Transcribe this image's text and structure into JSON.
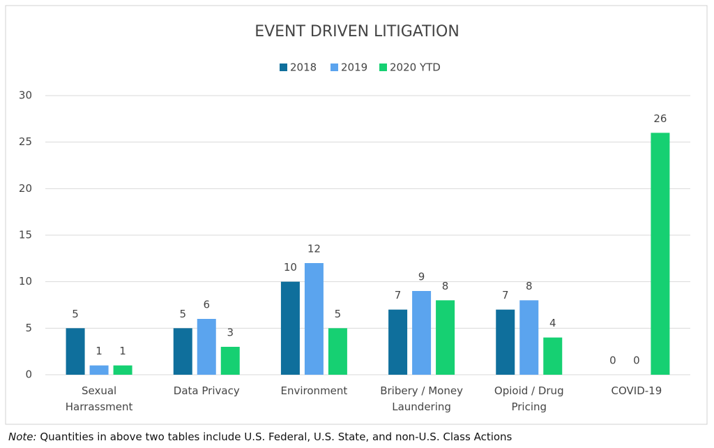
{
  "chart_data": {
    "type": "bar",
    "title": "EVENT DRIVEN LITIGATION",
    "categories": [
      "Sexual Harrassment",
      "Data Privacy",
      "Environment",
      "Bribery / Money Laundering",
      "Opioid / Drug Pricing",
      "COVID-19"
    ],
    "series": [
      {
        "name": "2018",
        "color": "#0f6f9c",
        "values": [
          5,
          5,
          10,
          7,
          7,
          0
        ]
      },
      {
        "name": "2019",
        "color": "#5ba4ee",
        "values": [
          1,
          6,
          12,
          9,
          8,
          0
        ]
      },
      {
        "name": "2020 YTD",
        "color": "#16d072",
        "values": [
          1,
          3,
          5,
          8,
          4,
          26
        ]
      }
    ],
    "ylim": [
      0,
      30
    ],
    "yticks": [
      0,
      5,
      10,
      15,
      20,
      25,
      30
    ],
    "grid": true,
    "legend": "top"
  },
  "note": {
    "label": "Note:",
    "text": "Quantities in above two tables include U.S. Federal, U.S. State, and non-U.S. Class Actions"
  }
}
